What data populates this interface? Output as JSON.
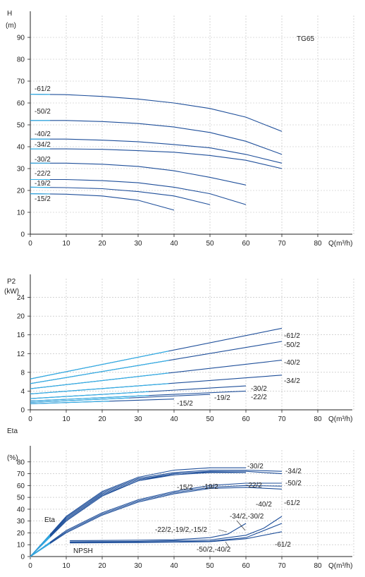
{
  "colors": {
    "curve_dark": "#1f4f9a",
    "curve_light": "#33b2e8",
    "grid": "#b9b9b9",
    "axis": "#222222"
  },
  "chart_data": [
    {
      "id": "head",
      "type": "line",
      "title": "TG65",
      "ylabel_top": "H",
      "yunit": "(m)",
      "xlabel": "Q(m³/h)",
      "xlim": [
        0,
        90
      ],
      "ylim": [
        0,
        100
      ],
      "x_ticks": [
        "0",
        "10",
        "20",
        "30",
        "40",
        "50",
        "60",
        "70",
        "80"
      ],
      "y_ticks": [
        "0",
        "10",
        "20",
        "30",
        "40",
        "50",
        "60",
        "70",
        "80",
        "90"
      ],
      "grid": true,
      "series": [
        {
          "name": "-61/2",
          "points": [
            [
              0,
              64
            ],
            [
              10,
              63.8
            ],
            [
              20,
              63
            ],
            [
              30,
              61.8
            ],
            [
              40,
              60
            ],
            [
              50,
              57.5
            ],
            [
              60,
              53.5
            ],
            [
              70,
              47
            ]
          ]
        },
        {
          "name": "-50/2",
          "points": [
            [
              0,
              52
            ],
            [
              10,
              52
            ],
            [
              20,
              51.5
            ],
            [
              30,
              50.6
            ],
            [
              40,
              49
            ],
            [
              50,
              46.5
            ],
            [
              60,
              42.5
            ],
            [
              70,
              36.5
            ]
          ]
        },
        {
          "name": "-40/2",
          "points": [
            [
              0,
              43.5
            ],
            [
              10,
              43.5
            ],
            [
              20,
              43
            ],
            [
              30,
              42.3
            ],
            [
              40,
              41
            ],
            [
              50,
              39.5
            ],
            [
              60,
              36.5
            ],
            [
              70,
              32.5
            ]
          ]
        },
        {
          "name": "-34/2",
          "points": [
            [
              0,
              39
            ],
            [
              10,
              39
            ],
            [
              20,
              38.8
            ],
            [
              30,
              38.2
            ],
            [
              40,
              37.5
            ],
            [
              50,
              36
            ],
            [
              60,
              33.8
            ],
            [
              70,
              30
            ]
          ]
        },
        {
          "name": "-30/2",
          "points": [
            [
              0,
              32.5
            ],
            [
              10,
              32.5
            ],
            [
              20,
              32
            ],
            [
              30,
              31
            ],
            [
              40,
              29
            ],
            [
              50,
              26
            ],
            [
              60,
              22.5
            ]
          ]
        },
        {
          "name": "-22/2",
          "points": [
            [
              0,
              25
            ],
            [
              10,
              25
            ],
            [
              20,
              24.5
            ],
            [
              30,
              23.5
            ],
            [
              40,
              21.5
            ],
            [
              50,
              18.5
            ],
            [
              60,
              13.5
            ]
          ]
        },
        {
          "name": "-19/2",
          "points": [
            [
              0,
              21.5
            ],
            [
              10,
              21.3
            ],
            [
              20,
              20.8
            ],
            [
              30,
              19.5
            ],
            [
              40,
              17.5
            ],
            [
              50,
              13.5
            ]
          ]
        },
        {
          "name": "-15/2",
          "points": [
            [
              0,
              18.5
            ],
            [
              10,
              18.3
            ],
            [
              20,
              17.5
            ],
            [
              30,
              15.5
            ],
            [
              40,
              11
            ]
          ]
        }
      ]
    },
    {
      "id": "power",
      "type": "line",
      "ylabel_top": "P2",
      "yunit": "(kW)",
      "xlabel": "Q(m³/h)",
      "xlim": [
        0,
        90
      ],
      "ylim": [
        0,
        28
      ],
      "x_ticks": [
        "0",
        "10",
        "20",
        "30",
        "40",
        "50",
        "60",
        "70",
        "80"
      ],
      "y_ticks": [
        "0",
        "4",
        "8",
        "12",
        "16",
        "20",
        "24"
      ],
      "grid": true,
      "series": [
        {
          "name": "-61/2",
          "points": [
            [
              0,
              6.6
            ],
            [
              70,
              17.4
            ]
          ]
        },
        {
          "name": "-50/2",
          "points": [
            [
              0,
              5.6
            ],
            [
              70,
              14.6
            ]
          ]
        },
        {
          "name": "-40/2",
          "points": [
            [
              0,
              4.5
            ],
            [
              70,
              10.6
            ]
          ]
        },
        {
          "name": "-34/2",
          "points": [
            [
              0,
              3.4
            ],
            [
              70,
              7.4
            ]
          ]
        },
        {
          "name": "-30/2",
          "points": [
            [
              0,
              2.4
            ],
            [
              60,
              5.1
            ]
          ]
        },
        {
          "name": "-22/2",
          "points": [
            [
              0,
              1.9
            ],
            [
              60,
              4.0
            ]
          ]
        },
        {
          "name": "-19/2",
          "points": [
            [
              0,
              1.6
            ],
            [
              50,
              3.3
            ]
          ]
        },
        {
          "name": "-15/2",
          "points": [
            [
              0,
              1.3
            ],
            [
              40,
              2.3
            ]
          ]
        }
      ]
    },
    {
      "id": "efficiency",
      "type": "line",
      "ylabel_top": "Eta",
      "yunit": "(%)",
      "xlabel": "Q(m³/h)",
      "xlim": [
        0,
        90
      ],
      "ylim": [
        0,
        90
      ],
      "x_ticks": [
        "0",
        "10",
        "20",
        "30",
        "40",
        "50",
        "60",
        "70",
        "80"
      ],
      "y_ticks": [
        "0",
        "10",
        "20",
        "30",
        "40",
        "50",
        "60",
        "70",
        "80"
      ],
      "grid": true,
      "annotations": [
        "Eta",
        "NPSH"
      ],
      "series": [
        {
          "name": "Eta -30/2",
          "points": [
            [
              0,
              0
            ],
            [
              10,
              34
            ],
            [
              20,
              55
            ],
            [
              30,
              67
            ],
            [
              40,
              73
            ],
            [
              50,
              75
            ],
            [
              60,
              75
            ]
          ]
        },
        {
          "name": "Eta -22/2",
          "points": [
            [
              0,
              0
            ],
            [
              10,
              33
            ],
            [
              20,
              54
            ],
            [
              30,
              66
            ],
            [
              40,
              71
            ],
            [
              50,
              73
            ],
            [
              60,
              73
            ],
            [
              70,
              72
            ]
          ]
        },
        {
          "name": "Eta -19/2",
          "points": [
            [
              0,
              0
            ],
            [
              10,
              32
            ],
            [
              20,
              53
            ],
            [
              30,
              65
            ],
            [
              40,
              70
            ],
            [
              50,
              71.5
            ],
            [
              60,
              71
            ]
          ]
        },
        {
          "name": "Eta -15/2",
          "points": [
            [
              0,
              0
            ],
            [
              10,
              31
            ],
            [
              20,
              52
            ],
            [
              30,
              64
            ],
            [
              40,
              69
            ],
            [
              50,
              71
            ],
            [
              60,
              71
            ]
          ]
        },
        {
          "name": "Eta -34/2",
          "points": [
            [
              0,
              0
            ],
            [
              10,
              30
            ],
            [
              20,
              51
            ],
            [
              30,
              64
            ],
            [
              40,
              70
            ],
            [
              50,
              72
            ],
            [
              60,
              72
            ],
            [
              70,
              70
            ]
          ]
        },
        {
          "name": "Eta -50/2",
          "points": [
            [
              0,
              0
            ],
            [
              10,
              22
            ],
            [
              20,
              37
            ],
            [
              30,
              48
            ],
            [
              40,
              55
            ],
            [
              50,
              60
            ],
            [
              60,
              62
            ],
            [
              70,
              62
            ]
          ]
        },
        {
          "name": "Eta -40/2",
          "points": [
            [
              0,
              0
            ],
            [
              10,
              21
            ],
            [
              20,
              36
            ],
            [
              30,
              47
            ],
            [
              40,
              54
            ],
            [
              50,
              58.5
            ],
            [
              60,
              60
            ],
            [
              70,
              59.5
            ]
          ]
        },
        {
          "name": "Eta -61/2",
          "points": [
            [
              0,
              0
            ],
            [
              10,
              20
            ],
            [
              20,
              35
            ],
            [
              30,
              46
            ],
            [
              40,
              53
            ],
            [
              50,
              57.5
            ],
            [
              60,
              58.5
            ],
            [
              70,
              57
            ]
          ]
        },
        {
          "name": "NPSH -22/2,-19/2,-15/2",
          "points": [
            [
              11,
              13.5
            ],
            [
              20,
              13.6
            ],
            [
              30,
              13.8
            ],
            [
              40,
              14.2
            ],
            [
              50,
              16
            ],
            [
              55,
              19
            ],
            [
              60,
              28
            ]
          ]
        },
        {
          "name": "NPSH -34/2,-30/2",
          "points": [
            [
              11,
              12.5
            ],
            [
              30,
              12.8
            ],
            [
              50,
              14
            ],
            [
              60,
              18
            ],
            [
              65,
              24
            ],
            [
              70,
              34
            ]
          ]
        },
        {
          "name": "NPSH -50/2,-40/2",
          "points": [
            [
              11,
              12
            ],
            [
              30,
              12.2
            ],
            [
              50,
              13
            ],
            [
              60,
              16
            ],
            [
              70,
              28
            ]
          ]
        },
        {
          "name": "NPSH -61/2",
          "points": [
            [
              11,
              11.5
            ],
            [
              30,
              11.8
            ],
            [
              50,
              12.5
            ],
            [
              60,
              15
            ],
            [
              70,
              21
            ]
          ]
        }
      ]
    }
  ]
}
